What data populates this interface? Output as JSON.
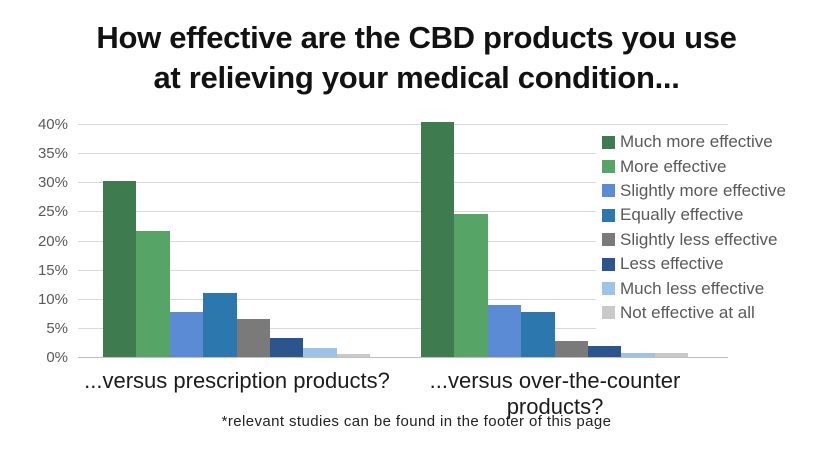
{
  "title": {
    "line1": "How effective are the CBD products you use",
    "line2": "at relieving your medical condition..."
  },
  "footnote": "*relevant studies can be found in the footer of this page",
  "chart_data": {
    "type": "bar",
    "title": "How effective are the CBD products you use at relieving your medical condition...",
    "categories": [
      "...versus prescription products?",
      "...versus over-the-counter products?"
    ],
    "series": [
      {
        "name": "Much more effective",
        "color": "#3E7C50",
        "values": [
          30.2,
          40.3
        ]
      },
      {
        "name": "More effective",
        "color": "#57A566",
        "values": [
          21.6,
          24.6
        ]
      },
      {
        "name": "Slightly more effective",
        "color": "#5B8BD5",
        "values": [
          7.8,
          9.0
        ]
      },
      {
        "name": "Equally effective",
        "color": "#2B77AE",
        "values": [
          11.0,
          7.8
        ]
      },
      {
        "name": "Slightly less effective",
        "color": "#7A7A7A",
        "values": [
          6.5,
          2.7
        ]
      },
      {
        "name": "Less effective",
        "color": "#2C5590",
        "values": [
          3.2,
          1.9
        ]
      },
      {
        "name": "Much less effective",
        "color": "#9DC3E6",
        "values": [
          1.6,
          0.7
        ]
      },
      {
        "name": "Not effective at all",
        "color": "#C9C9C9",
        "values": [
          0.6,
          0.7
        ]
      }
    ],
    "ylim": [
      0,
      40
    ],
    "y_tick_step": 5,
    "y_tick_suffix": "%",
    "grid": true,
    "legend_position": "right-inside",
    "xlabel": "",
    "ylabel": ""
  }
}
